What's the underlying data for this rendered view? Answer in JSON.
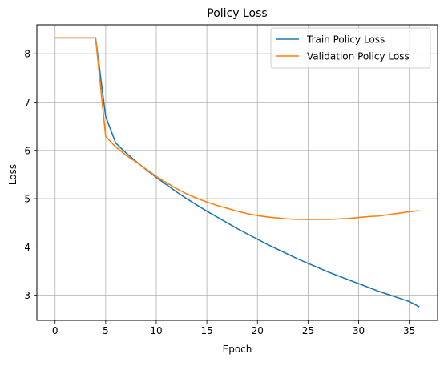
{
  "chart_data": {
    "type": "line",
    "title": "Policy Loss",
    "xlabel": "Epoch",
    "ylabel": "Loss",
    "xlim": [
      -1.8,
      37.8
    ],
    "ylim": [
      2.48,
      8.6
    ],
    "xticks": [
      0,
      5,
      10,
      15,
      20,
      25,
      30,
      35
    ],
    "yticks": [
      3,
      4,
      5,
      6,
      7,
      8
    ],
    "grid": true,
    "legend_position": "top-right",
    "x": [
      0,
      1,
      2,
      3,
      4,
      5,
      6,
      7,
      8,
      9,
      10,
      11,
      12,
      13,
      14,
      15,
      16,
      17,
      18,
      19,
      20,
      21,
      22,
      23,
      24,
      25,
      26,
      27,
      28,
      29,
      30,
      31,
      32,
      33,
      34,
      35,
      36
    ],
    "series": [
      {
        "name": "Train Policy Loss",
        "color": "#1f77b4",
        "values": [
          8.33,
          8.33,
          8.33,
          8.33,
          8.33,
          6.7,
          6.15,
          5.95,
          5.77,
          5.6,
          5.44,
          5.29,
          5.14,
          5.0,
          4.87,
          4.74,
          4.62,
          4.5,
          4.38,
          4.27,
          4.16,
          4.05,
          3.95,
          3.85,
          3.75,
          3.66,
          3.57,
          3.48,
          3.4,
          3.32,
          3.24,
          3.16,
          3.08,
          3.01,
          2.94,
          2.87,
          2.76
        ]
      },
      {
        "name": "Validation Policy Loss",
        "color": "#ff7f0e",
        "values": [
          8.33,
          8.33,
          8.33,
          8.33,
          8.33,
          6.29,
          6.07,
          5.9,
          5.76,
          5.61,
          5.46,
          5.33,
          5.21,
          5.1,
          5.01,
          4.93,
          4.86,
          4.8,
          4.74,
          4.69,
          4.65,
          4.62,
          4.6,
          4.58,
          4.57,
          4.57,
          4.57,
          4.57,
          4.58,
          4.59,
          4.61,
          4.63,
          4.64,
          4.67,
          4.7,
          4.73,
          4.75
        ]
      }
    ]
  }
}
